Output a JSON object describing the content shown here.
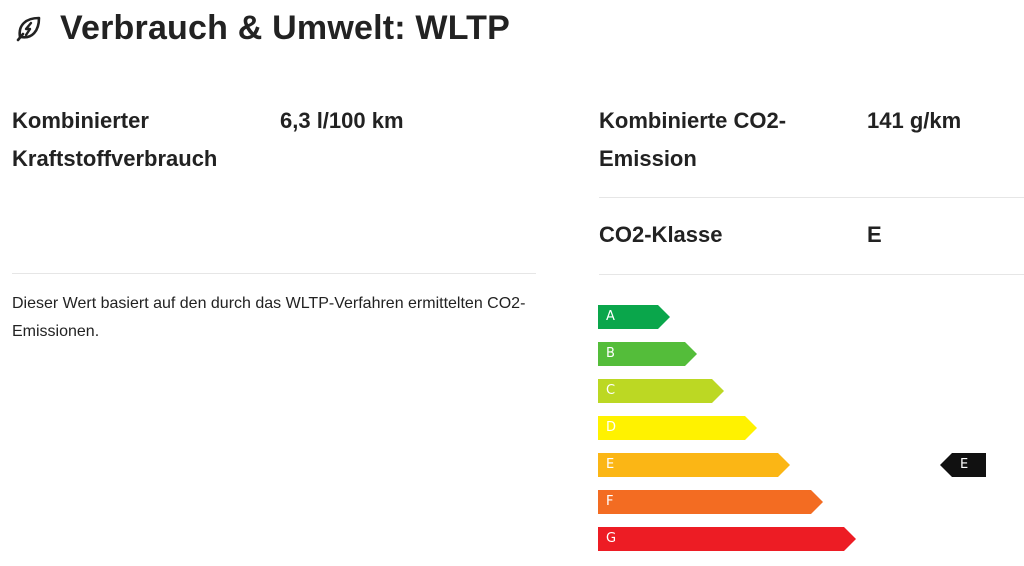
{
  "header": {
    "icon": "leaf-icon",
    "title": "Verbrauch & Umwelt: WLTP"
  },
  "fuel": {
    "label": "Kombinierter Kraftstoffverbrauch",
    "value": "6,3 l/100 km",
    "note": "Dieser Wert basiert auf den durch das WLTP-Verfahren ermittelten CO2-Emissionen."
  },
  "co2": {
    "label": "Kombinierte CO2-Emission",
    "value": "141 g/km"
  },
  "co2_class": {
    "label": "CO2-Klasse",
    "value": "E"
  },
  "efficiency_scale": {
    "classes": [
      {
        "letter": "A",
        "color": "#0aa64b"
      },
      {
        "letter": "B",
        "color": "#54bd3a"
      },
      {
        "letter": "C",
        "color": "#bcd823"
      },
      {
        "letter": "D",
        "color": "#fff200"
      },
      {
        "letter": "E",
        "color": "#fbb615"
      },
      {
        "letter": "F",
        "color": "#f36c22"
      },
      {
        "letter": "G",
        "color": "#ed1c24"
      }
    ],
    "selected": "E",
    "indicator_color": "#111111"
  }
}
